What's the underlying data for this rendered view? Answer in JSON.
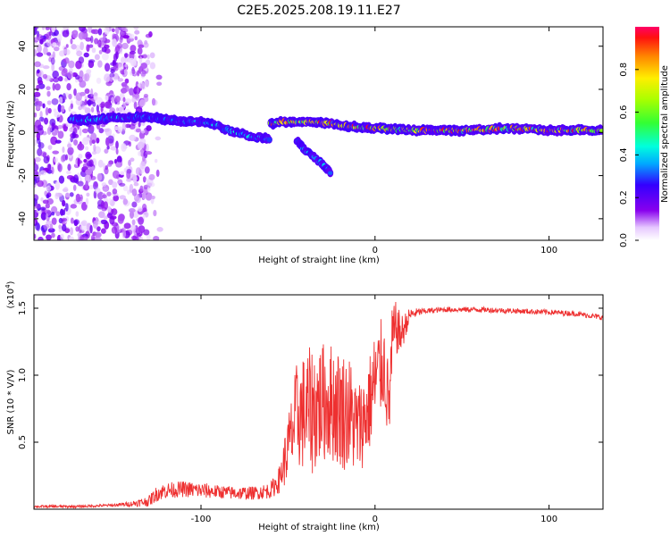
{
  "title": "C2E5.2025.208.19.11.E27",
  "chart_data": [
    {
      "type": "heatmap",
      "xlabel": "Height of straight line (km)",
      "ylabel": "Frequency (Hz)",
      "xlim": [
        -196,
        131
      ],
      "ylim": [
        -50,
        49
      ],
      "xticks": [
        -100,
        0,
        100
      ],
      "yticks": [
        -40,
        -20,
        0,
        20,
        40
      ],
      "colorbar": {
        "label": "Normalized spectral amplitude",
        "range": [
          0,
          1
        ],
        "ticks": [
          "0.0",
          "0.2",
          "0.4",
          "0.6",
          "0.8"
        ],
        "colormap": "rainbow (violet to red)"
      },
      "features": [
        {
          "name": "noise",
          "x_range": [
            -196,
            -130
          ],
          "y_range": [
            -50,
            49
          ],
          "level": 0.12
        },
        {
          "name": "trace-1",
          "points": [
            [
              -175,
              6
            ],
            [
              -160,
              6
            ],
            [
              -145,
              7
            ],
            [
              -130,
              7
            ],
            [
              -120,
              6
            ],
            [
              -110,
              5
            ],
            [
              -100,
              5
            ],
            [
              -90,
              3
            ],
            [
              -80,
              0
            ],
            [
              -70,
              -2
            ],
            [
              -60,
              -3
            ]
          ],
          "level": 0.4
        },
        {
          "name": "trace-2",
          "points": [
            [
              -60,
              4
            ],
            [
              -55,
              5
            ],
            [
              -45,
              5
            ],
            [
              -35,
              5
            ],
            [
              -25,
              4
            ],
            [
              -15,
              3
            ],
            [
              -5,
              2
            ],
            [
              0,
              2
            ],
            [
              20,
              1
            ],
            [
              50,
              1
            ],
            [
              80,
              2
            ],
            [
              100,
              1
            ],
            [
              131,
              1
            ]
          ],
          "level": 0.85
        },
        {
          "name": "branch",
          "points": [
            [
              -45,
              -4
            ],
            [
              -40,
              -8
            ],
            [
              -35,
              -11
            ],
            [
              -30,
              -15
            ],
            [
              -25,
              -19
            ]
          ],
          "level": 0.35
        }
      ]
    },
    {
      "type": "line",
      "xlabel": "Height of straight line (km)",
      "ylabel": "SNR (10 * V/V)",
      "y_multiplier": "(x10^4)",
      "xlim": [
        -196,
        131
      ],
      "ylim": [
        0,
        1.6
      ],
      "xticks": [
        -100,
        0,
        100
      ],
      "yticks": [
        0.5,
        1.0,
        1.5
      ],
      "series": [
        {
          "color": "#ee3030",
          "x": [
            -196,
            -170,
            -150,
            -140,
            -130,
            -125,
            -120,
            -110,
            -100,
            -90,
            -80,
            -70,
            -60,
            -55,
            -50,
            -45,
            -40,
            -35,
            -30,
            -25,
            -20,
            -15,
            -10,
            -5,
            0,
            5,
            8,
            10,
            12,
            15,
            20,
            25,
            30,
            40,
            60,
            80,
            100,
            115,
            131
          ],
          "y": [
            0.02,
            0.02,
            0.03,
            0.04,
            0.06,
            0.12,
            0.14,
            0.15,
            0.14,
            0.13,
            0.12,
            0.12,
            0.14,
            0.22,
            0.45,
            0.7,
            0.72,
            0.75,
            0.8,
            0.8,
            0.75,
            0.72,
            0.6,
            0.7,
            0.95,
            1.1,
            0.75,
            1.25,
            1.35,
            1.3,
            1.45,
            1.47,
            1.48,
            1.49,
            1.49,
            1.48,
            1.47,
            1.46,
            1.43
          ],
          "noise_amplitude": [
            0.01,
            0.01,
            0.01,
            0.02,
            0.04,
            0.06,
            0.06,
            0.06,
            0.06,
            0.05,
            0.05,
            0.05,
            0.06,
            0.1,
            0.25,
            0.4,
            0.45,
            0.5,
            0.45,
            0.45,
            0.45,
            0.45,
            0.35,
            0.35,
            0.4,
            0.35,
            0.3,
            0.3,
            0.2,
            0.15,
            0.05,
            0.03,
            0.02,
            0.02,
            0.02,
            0.02,
            0.02,
            0.02,
            0.02
          ]
        }
      ]
    }
  ]
}
